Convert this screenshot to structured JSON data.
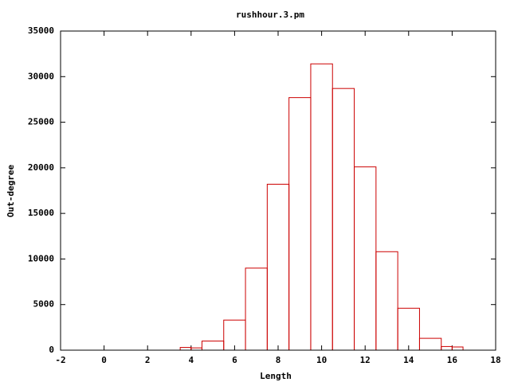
{
  "chart_data": {
    "type": "histogram",
    "title": "rushhour.3.pm",
    "x_label": "Length",
    "y_label": "Out-degree",
    "bins": [
      3.5,
      4,
      4.5,
      5.5,
      6.5,
      7.5,
      8.5,
      9.5,
      10.5,
      11.5,
      12.5,
      13.5,
      14.5,
      15.5,
      16,
      16.5
    ],
    "values": [
      300,
      250,
      1000,
      3300,
      9000,
      18200,
      27700,
      31400,
      28700,
      20100,
      10800,
      4600,
      1300,
      400,
      350
    ],
    "color": "#cc0000",
    "xlim": [
      -2,
      18
    ],
    "xticks": [
      -2,
      0,
      2,
      4,
      6,
      8,
      10,
      12,
      14,
      16,
      18
    ],
    "ylim": [
      0,
      35000
    ],
    "yticks": [
      0,
      5000,
      10000,
      15000,
      20000,
      25000,
      30000,
      35000
    ]
  }
}
